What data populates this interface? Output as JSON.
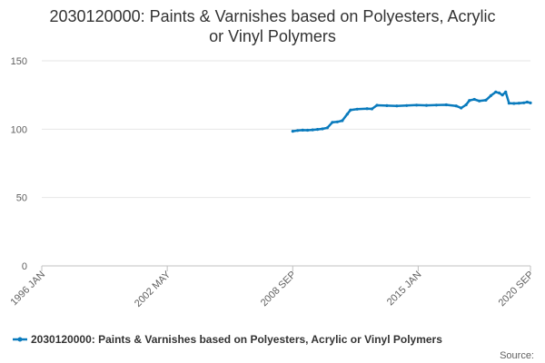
{
  "chart_data": {
    "type": "line",
    "title_lines": [
      "2030120000: Paints & Varnishes based on Polyesters, Acrylic",
      "or Vinyl Polymers"
    ],
    "xlabel": "",
    "ylabel": "",
    "x_range": [
      "1996-01",
      "2020-09"
    ],
    "x_ticks": [
      "1996 JAN",
      "2002 MAY",
      "2008 SEP",
      "2015 JAN",
      "2020 SEP"
    ],
    "y_ticks": [
      0,
      50,
      100,
      150
    ],
    "ylim": [
      0,
      150
    ],
    "grid": true,
    "legend_position": "bottom",
    "series": [
      {
        "name": "2030120000: Paints & Varnishes based on Polyesters, Acrylic or Vinyl Polymers",
        "color": "#0a7bbd",
        "points": [
          [
            "2008-09",
            98.5
          ],
          [
            "2008-12",
            99.0
          ],
          [
            "2009-03",
            99.3
          ],
          [
            "2009-06",
            99.2
          ],
          [
            "2009-09",
            99.5
          ],
          [
            "2009-12",
            99.8
          ],
          [
            "2010-03",
            100.2
          ],
          [
            "2010-06",
            101.0
          ],
          [
            "2010-09",
            105.0
          ],
          [
            "2010-12",
            105.3
          ],
          [
            "2011-03",
            106.2
          ],
          [
            "2011-06",
            111.0
          ],
          [
            "2011-08",
            114.0
          ],
          [
            "2011-12",
            114.6
          ],
          [
            "2012-06",
            115.0
          ],
          [
            "2012-09",
            114.8
          ],
          [
            "2012-12",
            117.5
          ],
          [
            "2013-06",
            117.2
          ],
          [
            "2013-12",
            117.0
          ],
          [
            "2014-06",
            117.3
          ],
          [
            "2014-12",
            117.6
          ],
          [
            "2015-06",
            117.4
          ],
          [
            "2015-12",
            117.6
          ],
          [
            "2016-06",
            117.8
          ],
          [
            "2016-12",
            117.0
          ],
          [
            "2017-03",
            115.5
          ],
          [
            "2017-06",
            117.8
          ],
          [
            "2017-08",
            121.0
          ],
          [
            "2017-11",
            121.8
          ],
          [
            "2018-02",
            120.6
          ],
          [
            "2018-06",
            121.2
          ],
          [
            "2018-09",
            124.5
          ],
          [
            "2018-12",
            127.2
          ],
          [
            "2019-02",
            126.5
          ],
          [
            "2019-04",
            125.0
          ],
          [
            "2019-06",
            127.2
          ],
          [
            "2019-08",
            119.0
          ],
          [
            "2019-11",
            118.8
          ],
          [
            "2020-02",
            119.0
          ],
          [
            "2020-05",
            119.3
          ],
          [
            "2020-07",
            119.8
          ],
          [
            "2020-09",
            119.2
          ]
        ]
      }
    ],
    "credit": "Source:"
  }
}
